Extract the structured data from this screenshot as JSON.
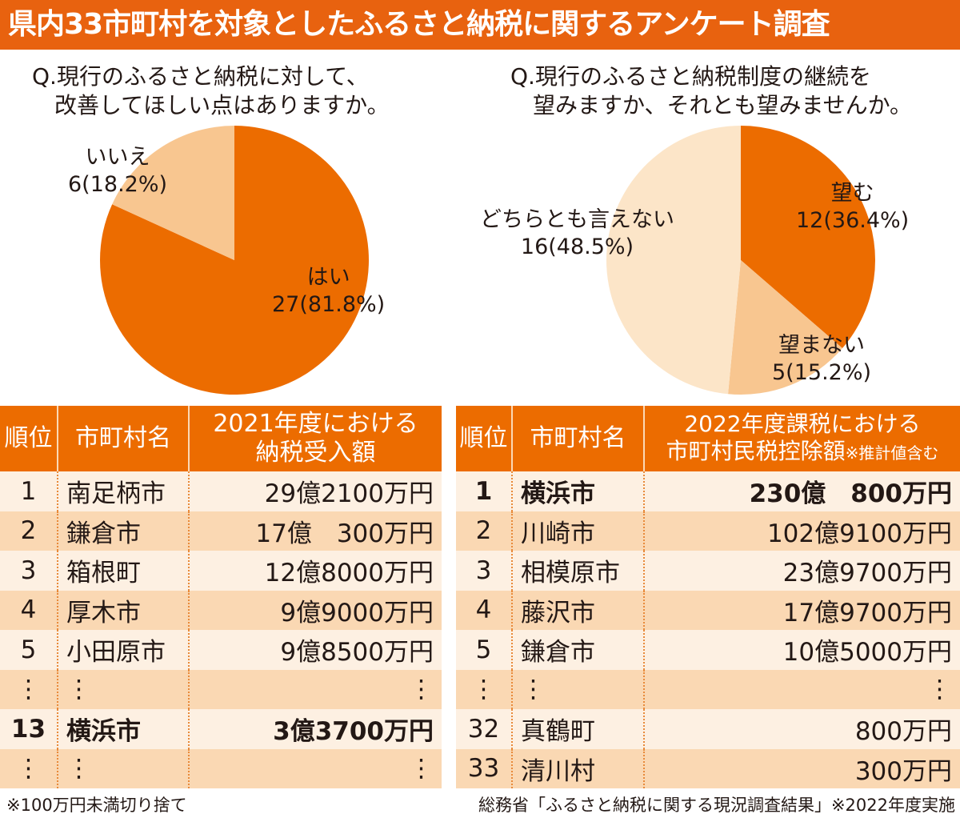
{
  "title": "県内33市町村を対象としたふるさと納税に関するアンケート調査",
  "chart_data": [
    {
      "type": "pie",
      "title": "Q.現行のふるさと納税に対して、\n　改善してほしい点はありますか。",
      "slices": [
        {
          "label": "はい",
          "value": 27,
          "pct_label": "27(81.8%)",
          "color": "#ec6c00"
        },
        {
          "label": "いいえ",
          "value": 6,
          "pct_label": "6(18.2%)",
          "color": "#f8c690"
        }
      ]
    },
    {
      "type": "pie",
      "title": "Q.現行のふるさと納税制度の継続を\n　望みますか、それとも望みませんか。",
      "slices": [
        {
          "label": "望む",
          "value": 12,
          "pct_label": "12(36.4%)",
          "color": "#ec6c00"
        },
        {
          "label": "望まない",
          "value": 5,
          "pct_label": "5(15.2%)",
          "color": "#f8c690"
        },
        {
          "label": "どちらとも言えない",
          "value": 16,
          "pct_label": "16(48.5%)",
          "color": "#fce5c8"
        }
      ]
    },
    {
      "type": "table",
      "headers": [
        "順位",
        "市町村名",
        "2021年度における\n納税受入額"
      ],
      "rows": [
        [
          "1",
          "南足柄市",
          "29億2100万円"
        ],
        [
          "2",
          "鎌倉市",
          "17億　300万円"
        ],
        [
          "3",
          "箱根町",
          "12億8000万円"
        ],
        [
          "4",
          "厚木市",
          "9億9000万円"
        ],
        [
          "5",
          "小田原市",
          "9億8500万円"
        ],
        [
          "⋮",
          "⋮",
          "⋮"
        ],
        [
          "13",
          "横浜市",
          "3億3700万円"
        ],
        [
          "⋮",
          "⋮",
          "⋮"
        ]
      ]
    },
    {
      "type": "table",
      "headers": [
        "順位",
        "市町村名",
        "2022年度課税における\n市町村民税控除額",
        "※推計値含む"
      ],
      "rows": [
        [
          "1",
          "横浜市",
          "230億　800万円"
        ],
        [
          "2",
          "川崎市",
          "102億9100万円"
        ],
        [
          "3",
          "相模原市",
          "23億9700万円"
        ],
        [
          "4",
          "藤沢市",
          "17億9700万円"
        ],
        [
          "5",
          "鎌倉市",
          "10億5000万円"
        ],
        [
          "⋮",
          "⋮",
          "⋮"
        ],
        [
          "32",
          "真鶴町",
          "800万円"
        ],
        [
          "33",
          "清川村",
          "300万円"
        ]
      ]
    }
  ],
  "footer": {
    "left": "※100万円未満切り捨て",
    "right": "総務省「ふるさと納税に関する現況調査結果」※2022年度実施"
  }
}
